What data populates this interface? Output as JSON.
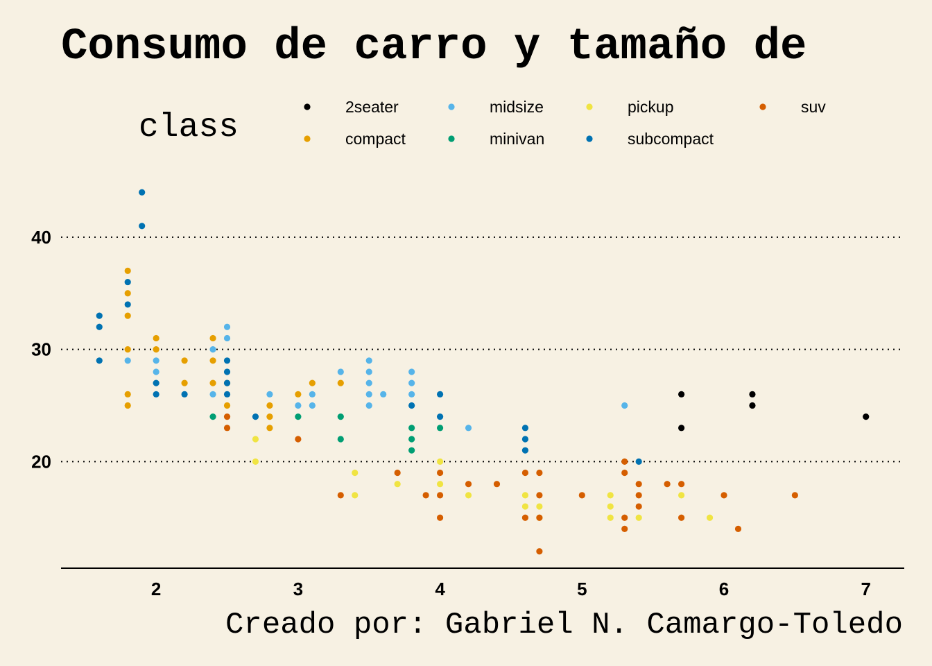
{
  "chart_data": {
    "type": "scatter",
    "title": "Consumo de carro y tamaño de",
    "caption": "Creado por: Gabriel N. Camargo-Toledo",
    "xlabel": "",
    "ylabel": "",
    "xlim": [
      1.33,
      7.27
    ],
    "ylim": [
      10.5,
      46.3
    ],
    "x_ticks": [
      2,
      3,
      4,
      5,
      6,
      7
    ],
    "y_ticks": [
      20,
      30,
      40
    ],
    "grid": {
      "major_y": true,
      "major_x": false,
      "style": "dotted"
    },
    "legend": {
      "title": "class",
      "position": "top",
      "entries": [
        {
          "name": "2seater",
          "color": "#000000"
        },
        {
          "name": "compact",
          "color": "#E69F00"
        },
        {
          "name": "midsize",
          "color": "#56B4E9"
        },
        {
          "name": "minivan",
          "color": "#009E73"
        },
        {
          "name": "pickup",
          "color": "#F0E442"
        },
        {
          "name": "subcompact",
          "color": "#0072B2"
        },
        {
          "name": "suv",
          "color": "#D55E00"
        }
      ]
    },
    "series": [
      {
        "name": "2seater",
        "color": "#000000",
        "points": [
          [
            5.7,
            26
          ],
          [
            5.7,
            23
          ],
          [
            6.2,
            26
          ],
          [
            6.2,
            25
          ],
          [
            7.0,
            24
          ]
        ]
      },
      {
        "name": "compact",
        "color": "#E69F00",
        "points": [
          [
            1.8,
            37
          ],
          [
            1.8,
            35
          ],
          [
            1.8,
            33
          ],
          [
            1.8,
            30
          ],
          [
            1.8,
            26
          ],
          [
            1.8,
            25
          ],
          [
            2.0,
            31
          ],
          [
            2.0,
            30
          ],
          [
            2.2,
            29
          ],
          [
            2.2,
            27
          ],
          [
            2.4,
            31
          ],
          [
            2.4,
            29
          ],
          [
            2.4,
            27
          ],
          [
            2.5,
            27
          ],
          [
            2.5,
            25
          ],
          [
            2.8,
            25
          ],
          [
            2.8,
            24
          ],
          [
            2.8,
            23
          ],
          [
            3.0,
            26
          ],
          [
            3.1,
            27
          ],
          [
            3.3,
            27
          ]
        ]
      },
      {
        "name": "midsize",
        "color": "#56B4E9",
        "points": [
          [
            1.8,
            29
          ],
          [
            2.0,
            29
          ],
          [
            2.0,
            28
          ],
          [
            2.4,
            30
          ],
          [
            2.4,
            26
          ],
          [
            2.5,
            32
          ],
          [
            2.5,
            31
          ],
          [
            2.8,
            26
          ],
          [
            3.0,
            25
          ],
          [
            3.1,
            26
          ],
          [
            3.1,
            25
          ],
          [
            3.3,
            28
          ],
          [
            3.5,
            29
          ],
          [
            3.5,
            28
          ],
          [
            3.5,
            27
          ],
          [
            3.5,
            26
          ],
          [
            3.5,
            25
          ],
          [
            3.6,
            26
          ],
          [
            3.8,
            28
          ],
          [
            3.8,
            27
          ],
          [
            3.8,
            26
          ],
          [
            4.2,
            23
          ],
          [
            5.3,
            25
          ]
        ]
      },
      {
        "name": "minivan",
        "color": "#009E73",
        "points": [
          [
            2.4,
            24
          ],
          [
            3.0,
            24
          ],
          [
            3.3,
            24
          ],
          [
            3.3,
            22
          ],
          [
            3.8,
            23
          ],
          [
            3.8,
            22
          ],
          [
            3.8,
            21
          ],
          [
            4.0,
            23
          ]
        ]
      },
      {
        "name": "pickup",
        "color": "#F0E442",
        "points": [
          [
            2.7,
            22
          ],
          [
            2.7,
            20
          ],
          [
            3.4,
            19
          ],
          [
            3.4,
            17
          ],
          [
            3.7,
            18
          ],
          [
            4.0,
            20
          ],
          [
            4.0,
            18
          ],
          [
            4.2,
            17
          ],
          [
            4.6,
            17
          ],
          [
            4.6,
            16
          ],
          [
            4.7,
            16
          ],
          [
            4.7,
            15
          ],
          [
            5.2,
            17
          ],
          [
            5.2,
            16
          ],
          [
            5.2,
            15
          ],
          [
            5.4,
            15
          ],
          [
            5.7,
            17
          ],
          [
            5.9,
            15
          ]
        ]
      },
      {
        "name": "subcompact",
        "color": "#0072B2",
        "points": [
          [
            1.6,
            33
          ],
          [
            1.6,
            32
          ],
          [
            1.6,
            29
          ],
          [
            1.8,
            36
          ],
          [
            1.8,
            34
          ],
          [
            1.9,
            44
          ],
          [
            1.9,
            41
          ],
          [
            2.0,
            27
          ],
          [
            2.0,
            26
          ],
          [
            2.2,
            26
          ],
          [
            2.5,
            29
          ],
          [
            2.5,
            28
          ],
          [
            2.5,
            27
          ],
          [
            2.5,
            26
          ],
          [
            2.7,
            24
          ],
          [
            3.8,
            25
          ],
          [
            4.0,
            26
          ],
          [
            4.0,
            24
          ],
          [
            4.6,
            23
          ],
          [
            4.6,
            22
          ],
          [
            4.6,
            21
          ],
          [
            5.4,
            20
          ]
        ]
      },
      {
        "name": "suv",
        "color": "#D55E00",
        "points": [
          [
            2.5,
            24
          ],
          [
            2.5,
            23
          ],
          [
            3.0,
            22
          ],
          [
            3.3,
            17
          ],
          [
            3.7,
            19
          ],
          [
            3.9,
            17
          ],
          [
            4.0,
            19
          ],
          [
            4.0,
            17
          ],
          [
            4.0,
            15
          ],
          [
            4.2,
            18
          ],
          [
            4.4,
            18
          ],
          [
            4.6,
            19
          ],
          [
            4.6,
            15
          ],
          [
            4.7,
            19
          ],
          [
            4.7,
            17
          ],
          [
            4.7,
            15
          ],
          [
            4.7,
            12
          ],
          [
            5.0,
            17
          ],
          [
            5.3,
            20
          ],
          [
            5.3,
            19
          ],
          [
            5.3,
            15
          ],
          [
            5.3,
            14
          ],
          [
            5.4,
            18
          ],
          [
            5.4,
            17
          ],
          [
            5.4,
            16
          ],
          [
            5.6,
            18
          ],
          [
            5.7,
            18
          ],
          [
            5.7,
            15
          ],
          [
            6.0,
            17
          ],
          [
            6.1,
            14
          ],
          [
            6.5,
            17
          ]
        ]
      }
    ]
  }
}
